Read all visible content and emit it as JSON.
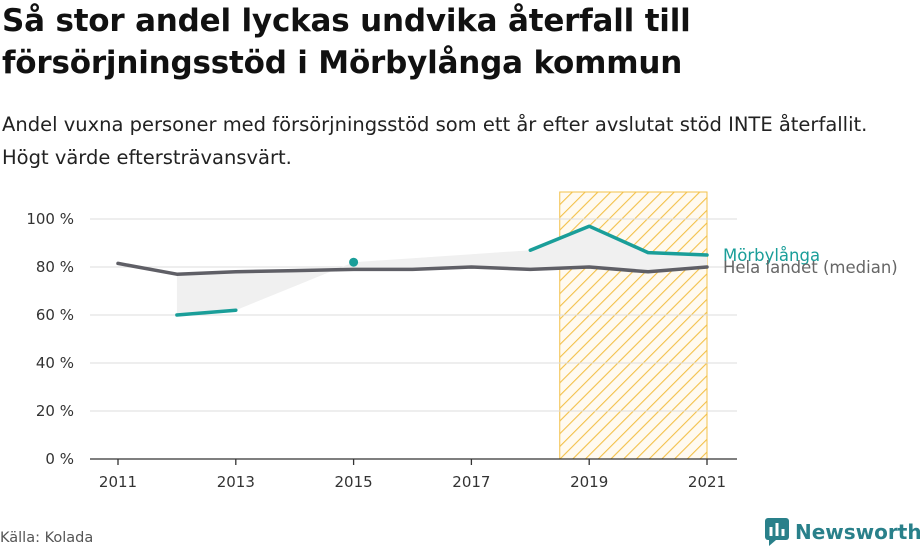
{
  "header": {
    "title": "Så stor andel lyckas undvika återfall till försörjningsstöd i Mörbylånga kommun",
    "subtitle": "Andel vuxna personer med försörjningsstöd som ett år efter avslutat stöd INTE återfallit. Högt värde eftersträvansvärt."
  },
  "footer": {
    "source": "Källa: Kolada",
    "brand": "Newsworthy"
  },
  "chart_data": {
    "type": "line",
    "x_ticks": [
      2011,
      2013,
      2015,
      2017,
      2019,
      2021
    ],
    "x_range": [
      2011,
      2021
    ],
    "y_ticks": [
      0,
      20,
      40,
      60,
      80,
      100
    ],
    "y_tick_labels": [
      "0 %",
      "20 %",
      "40 %",
      "60 %",
      "80 %",
      "100 %"
    ],
    "ylim": [
      0,
      100
    ],
    "grid": true,
    "highlight_band": {
      "from": 2018.5,
      "to": 2021
    },
    "colors": {
      "municipality": "#1a9e99",
      "median": "#5f5f66",
      "band": "#f3c14a",
      "fill": "#f0f0f0"
    },
    "series": [
      {
        "name": "Mörbylånga",
        "x": [
          2011,
          2012,
          2013,
          2014,
          2015,
          2016,
          2017,
          2018,
          2019,
          2020,
          2021
        ],
        "y": [
          null,
          60,
          62,
          null,
          82,
          null,
          null,
          87,
          97,
          86,
          85
        ]
      },
      {
        "name": "Hela landet (median)",
        "x": [
          2011,
          2012,
          2013,
          2014,
          2015,
          2016,
          2017,
          2018,
          2019,
          2020,
          2021
        ],
        "y": [
          81.5,
          77,
          78,
          78.5,
          79,
          79,
          80,
          79,
          80,
          78,
          80
        ]
      }
    ]
  }
}
